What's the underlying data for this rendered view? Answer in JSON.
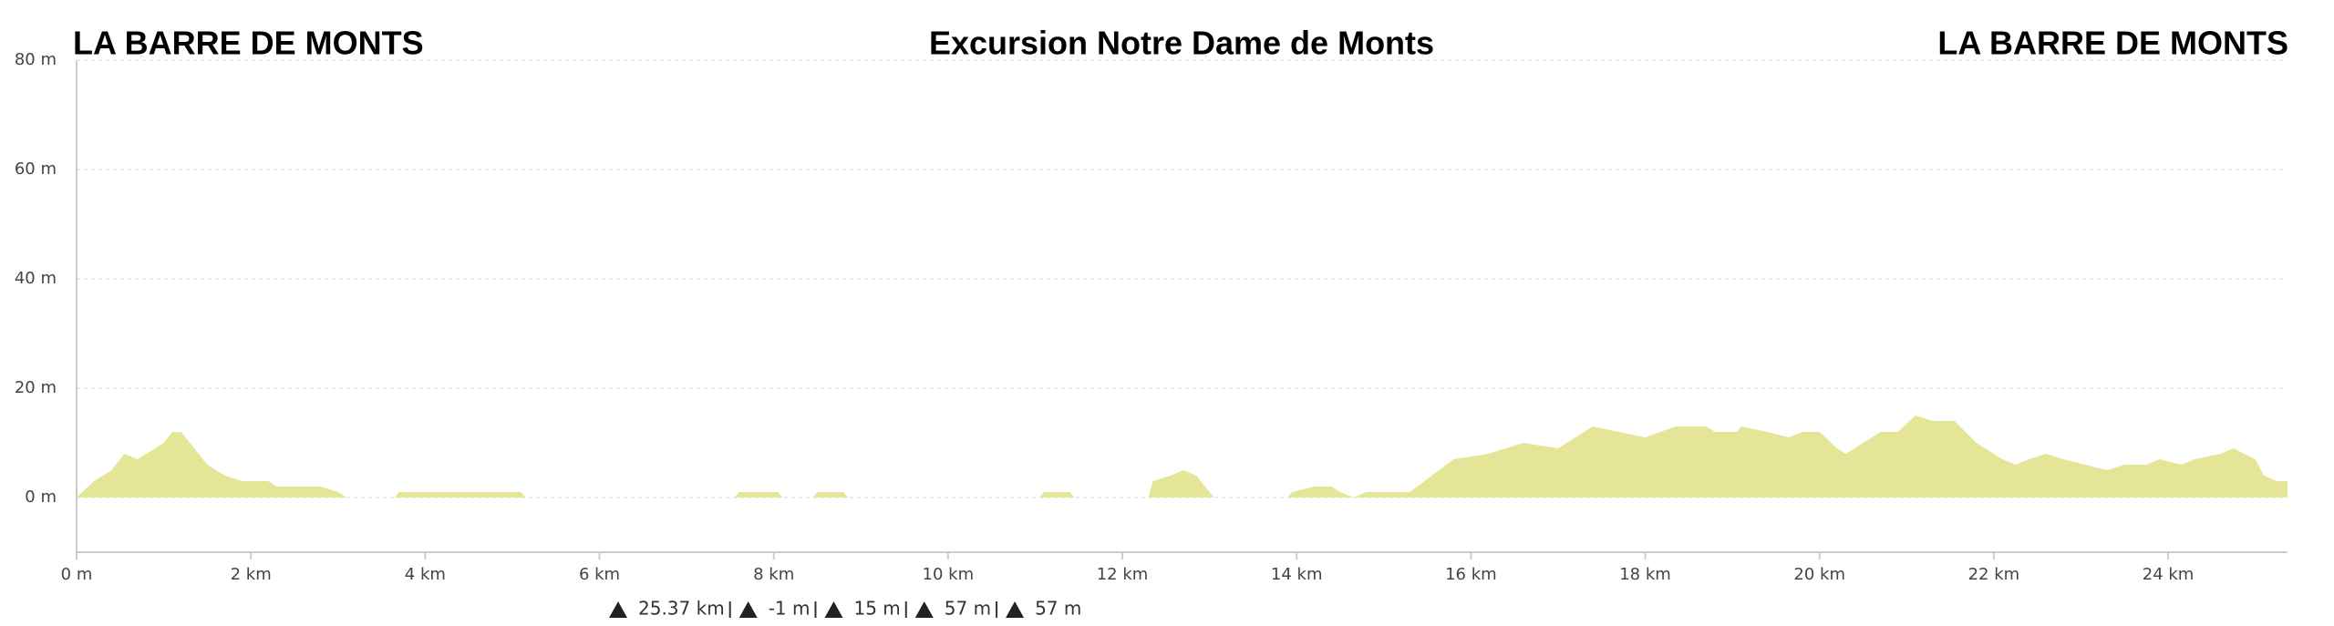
{
  "chart_data": {
    "type": "area",
    "title": "Excursion Notre Dame de Monts",
    "start_label": "LA BARRE DE MONTS",
    "end_label": "LA BARRE DE MONTS",
    "color": "#e4e597",
    "grid": true,
    "x": [
      0,
      0.2,
      0.4,
      0.55,
      0.7,
      0.9,
      1.0,
      1.1,
      1.2,
      1.4,
      1.5,
      1.7,
      1.9,
      2.2,
      2.3,
      2.8,
      3.0,
      3.1,
      3.65,
      3.7,
      5.1,
      5.15,
      7.55,
      7.6,
      8.05,
      8.1,
      8.45,
      8.5,
      8.8,
      8.85,
      11.05,
      11.1,
      11.4,
      11.45,
      12.3,
      12.35,
      12.55,
      12.7,
      12.85,
      12.95,
      13.05,
      13.9,
      13.95,
      14.2,
      14.4,
      14.5,
      14.65,
      14.8,
      15.3,
      15.8,
      16.2,
      16.6,
      17.0,
      17.4,
      17.7,
      18.0,
      18.35,
      18.7,
      18.8,
      19.05,
      19.1,
      19.4,
      19.65,
      19.8,
      20.0,
      20.2,
      20.3,
      20.7,
      20.9,
      21.1,
      21.3,
      21.55,
      21.8,
      22.1,
      22.25,
      22.4,
      22.6,
      22.8,
      23.05,
      23.3,
      23.5,
      23.75,
      23.9,
      24.15,
      24.3,
      24.6,
      24.75,
      25.0,
      25.1,
      25.25,
      25.37
    ],
    "values": [
      0,
      3,
      5,
      8,
      7,
      9,
      10,
      12,
      12,
      8,
      6,
      4,
      3,
      3,
      2,
      2,
      1,
      0,
      0,
      1,
      1,
      0,
      0,
      1,
      1,
      0,
      0,
      1,
      1,
      0,
      0,
      1,
      1,
      0,
      0,
      3,
      4,
      5,
      4,
      2,
      0,
      0,
      1,
      2,
      2,
      1,
      0,
      1,
      1,
      7,
      8,
      10,
      9,
      13,
      12,
      11,
      13,
      13,
      12,
      12,
      13,
      12,
      11,
      12,
      12,
      9,
      8,
      12,
      12,
      15,
      14,
      14,
      10,
      7,
      6,
      7,
      8,
      7,
      6,
      5,
      6,
      6,
      7,
      6,
      7,
      8,
      9,
      7,
      4,
      3,
      3
    ],
    "xlim": [
      0,
      25.37
    ],
    "ylim": [
      -10,
      80
    ],
    "xticks": [
      {
        "value": 0,
        "label": "0 m"
      },
      {
        "value": 2,
        "label": "2 km"
      },
      {
        "value": 4,
        "label": "4 km"
      },
      {
        "value": 6,
        "label": "6 km"
      },
      {
        "value": 8,
        "label": "8 km"
      },
      {
        "value": 10,
        "label": "10 km"
      },
      {
        "value": 12,
        "label": "12 km"
      },
      {
        "value": 14,
        "label": "14 km"
      },
      {
        "value": 16,
        "label": "16 km"
      },
      {
        "value": 18,
        "label": "18 km"
      },
      {
        "value": 20,
        "label": "20 km"
      },
      {
        "value": 22,
        "label": "22 km"
      },
      {
        "value": 24,
        "label": "24 km"
      }
    ],
    "yticks": [
      {
        "value": 0,
        "label": "0 m"
      },
      {
        "value": 20,
        "label": "20 m"
      },
      {
        "value": 40,
        "label": "40 m"
      },
      {
        "value": 60,
        "label": "60 m"
      },
      {
        "value": 80,
        "label": "80 m"
      }
    ],
    "stats": [
      "25.37 km",
      "-1 m",
      "15 m",
      "57 m",
      "57 m"
    ]
  }
}
